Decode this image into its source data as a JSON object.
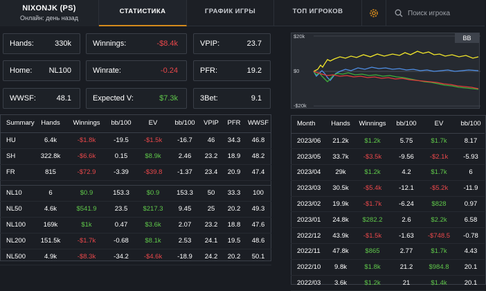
{
  "header": {
    "player_name": "NIXONJK (PS)",
    "player_status": "Онлайн: день назад",
    "tabs": [
      {
        "label": "СТАТИСТИКА"
      },
      {
        "label": "ГРАФИК ИГРЫ"
      },
      {
        "label": "ТОП ИГРОКОВ"
      }
    ],
    "search_placeholder": "Поиск игрока"
  },
  "stats": {
    "hands": {
      "label": "Hands:",
      "value": "330k"
    },
    "winnings": {
      "label": "Winnings:",
      "value": "-$8.4k"
    },
    "vpip": {
      "label": "VPIP:",
      "value": "23.7"
    },
    "home": {
      "label": "Home:",
      "value": "NL100"
    },
    "winrate": {
      "label": "Winrate:",
      "value": "-0.24"
    },
    "pfr": {
      "label": "PFR:",
      "value": "19.2"
    },
    "wwsf": {
      "label": "WWSF:",
      "value": "48.1"
    },
    "expected": {
      "label": "Expected V:",
      "value": "$7.3k"
    },
    "threebet": {
      "label": "3Bet:",
      "value": "9.1"
    }
  },
  "graph": {
    "unit": "BB",
    "y_top": "$20k",
    "y_mid": "$0",
    "y_bottom": "-$20k",
    "colors": {
      "yellow": "#f2e62a",
      "blue": "#4f8fe6",
      "green": "#3fae3a",
      "red": "#e23b3b"
    }
  },
  "summary_table": {
    "headers": [
      "Summary",
      "Hands",
      "Winnings",
      "bb/100",
      "EV",
      "bb/100",
      "VPIP",
      "PFR",
      "WWSF"
    ],
    "rows": [
      [
        "HU",
        "6.4k",
        "-$1.8k",
        "-19.5",
        "-$1.5k",
        "-16.7",
        "46",
        "34.3",
        "46.8"
      ],
      [
        "SH",
        "322.8k",
        "-$6.6k",
        "0.15",
        "$8.9k",
        "2.46",
        "23.2",
        "18.9",
        "48.2"
      ],
      [
        "FR",
        "815",
        "-$72.9",
        "-3.39",
        "-$39.8",
        "-1.37",
        "23.4",
        "20.9",
        "47.4"
      ],
      [
        "NL10",
        "6",
        "$0.9",
        "153.3",
        "$0.9",
        "153.3",
        "50",
        "33.3",
        "100"
      ],
      [
        "NL50",
        "4.6k",
        "$541.9",
        "23.5",
        "$217.3",
        "9.45",
        "25",
        "20.2",
        "49.3"
      ],
      [
        "NL100",
        "169k",
        "$1k",
        "0.47",
        "$3.6k",
        "2.07",
        "23.2",
        "18.8",
        "47.6"
      ],
      [
        "NL200",
        "151.5k",
        "-$1.7k",
        "-0.68",
        "$8.1k",
        "2.53",
        "24.1",
        "19.5",
        "48.6"
      ],
      [
        "NL500",
        "4.9k",
        "-$8.3k",
        "-34.2",
        "-$4.6k",
        "-18.9",
        "24.2",
        "20.2",
        "50.1"
      ]
    ]
  },
  "month_table": {
    "headers": [
      "Month",
      "Hands",
      "Winnings",
      "bb/100",
      "EV",
      "bb/100"
    ],
    "rows": [
      [
        "2023/06",
        "21.2k",
        "$1.2k",
        "5.75",
        "$1.7k",
        "8.17"
      ],
      [
        "2023/05",
        "33.7k",
        "-$3.5k",
        "-9.56",
        "-$2.1k",
        "-5.93"
      ],
      [
        "2023/04",
        "29k",
        "$1.2k",
        "4.2",
        "$1.7k",
        "6"
      ],
      [
        "2023/03",
        "30.5k",
        "-$5.4k",
        "-12.1",
        "-$5.2k",
        "-11.9"
      ],
      [
        "2023/02",
        "19.9k",
        "-$1.7k",
        "-6.24",
        "$828",
        "0.97"
      ],
      [
        "2023/01",
        "24.8k",
        "$282.2",
        "2.6",
        "$2.2k",
        "6.58"
      ],
      [
        "2022/12",
        "43.9k",
        "-$1.5k",
        "-1.63",
        "-$748.5",
        "-0.78"
      ],
      [
        "2022/11",
        "47.8k",
        "$865",
        "2.77",
        "$1.7k",
        "4.43"
      ],
      [
        "2022/10",
        "9.8k",
        "$1.8k",
        "21.2",
        "$984.8",
        "20.1"
      ],
      [
        "2022/03",
        "3.6k",
        "$1.2k",
        "21",
        "$1.4k",
        "20.1"
      ]
    ]
  }
}
